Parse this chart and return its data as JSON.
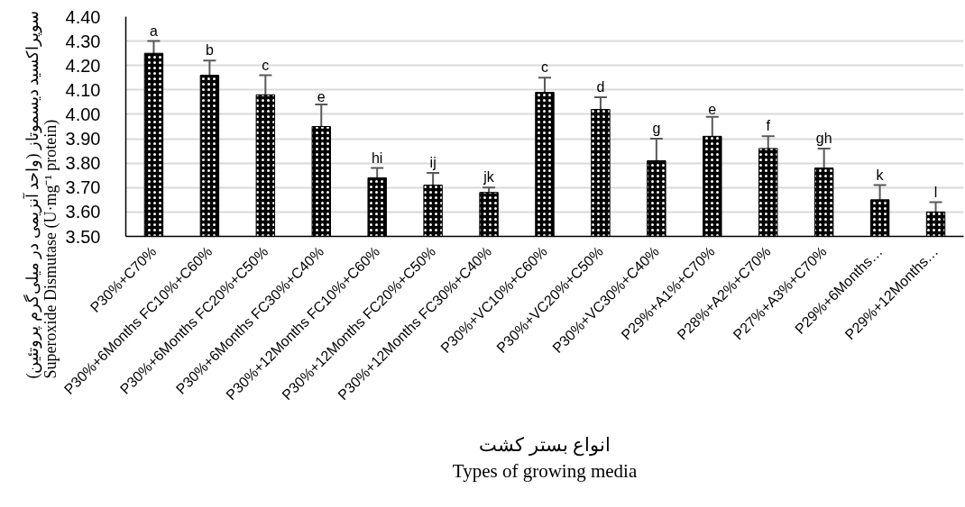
{
  "chart_data": {
    "type": "bar",
    "categories": [
      "P30%+C70%",
      "P30%+6Months FC10%+C60%",
      "P30%+6Months FC20%+C50%",
      "P30%+6Months FC30%+C40%",
      "P30%+12Months FC10%+C60%",
      "P30%+12Months FC20%+C50%",
      "P30%+12Months FC30%+C40%",
      "P30%+VC10%+C60%",
      "P30%+VC20%+C50%",
      "P30%+VC30%+C40%",
      "P29%+A1%+C70%",
      "P28%+A2%+C70%",
      "P27%+A3%+C70%",
      "P29%+6Months…",
      "P29%+12Months…"
    ],
    "values": [
      4.25,
      4.16,
      4.08,
      3.95,
      3.74,
      3.71,
      3.68,
      4.09,
      4.02,
      3.81,
      3.91,
      3.86,
      3.78,
      3.65,
      3.6
    ],
    "errors": [
      0.05,
      0.06,
      0.08,
      0.09,
      0.04,
      0.05,
      0.02,
      0.06,
      0.05,
      0.09,
      0.08,
      0.05,
      0.08,
      0.06,
      0.04
    ],
    "color": "#000000",
    "ylim": [
      3.5,
      4.4
    ],
    "yticks": [
      {
        "value": 3.5,
        "label": "3.50"
      },
      {
        "value": 3.6,
        "label": "3.60"
      },
      {
        "value": 3.7,
        "label": "3.70"
      },
      {
        "value": 3.8,
        "label": "3.80"
      },
      {
        "value": 3.9,
        "label": "3.90"
      },
      {
        "value": 4.0,
        "label": "4.00"
      },
      {
        "value": 4.1,
        "label": "4.10"
      },
      {
        "value": 4.2,
        "label": "4.20"
      },
      {
        "value": 4.3,
        "label": "4.30"
      },
      {
        "value": 4.4,
        "label": "4.40"
      }
    ],
    "grid": "y",
    "xlabel": "انواع بستر کشت\nTypes of growing media",
    "ylabel": "سوپراکسید دیسموتاز (واحد آنزیمی در میلی‌گرم پروتئین)\nSuperoxide Dismutase (U·mg⁻¹ protein)",
    "annotations": [
      {
        "text": "a",
        "x": "P30%+C70%",
        "y": 4.25
      },
      {
        "text": "b",
        "x": "P30%+6Months FC10%+C60%",
        "y": 4.16
      },
      {
        "text": "c",
        "x": "P30%+6Months FC20%+C50%",
        "y": 4.08
      },
      {
        "text": "e",
        "x": "P30%+6Months FC30%+C40%",
        "y": 3.95
      },
      {
        "text": "hi",
        "x": "P30%+12Months FC10%+C60%",
        "y": 3.74
      },
      {
        "text": "ij",
        "x": "P30%+12Months FC20%+C50%",
        "y": 3.71
      },
      {
        "text": "jk",
        "x": "P30%+12Months FC30%+C40%",
        "y": 3.68
      },
      {
        "text": "c",
        "x": "P30%+VC10%+C60%",
        "y": 4.09
      },
      {
        "text": "d",
        "x": "P30%+VC20%+C50%",
        "y": 4.02
      },
      {
        "text": "g",
        "x": "P30%+VC30%+C40%",
        "y": 3.81
      },
      {
        "text": "e",
        "x": "P29%+A1%+C70%",
        "y": 3.91
      },
      {
        "text": "f",
        "x": "P28%+A2%+C70%",
        "y": 3.86
      },
      {
        "text": "gh",
        "x": "P27%+A3%+C70%",
        "y": 3.78
      },
      {
        "text": "k",
        "x": "P29%+6Months…",
        "y": 3.65
      },
      {
        "text": "l",
        "x": "P29%+12Months…",
        "y": 3.6
      }
    ]
  }
}
